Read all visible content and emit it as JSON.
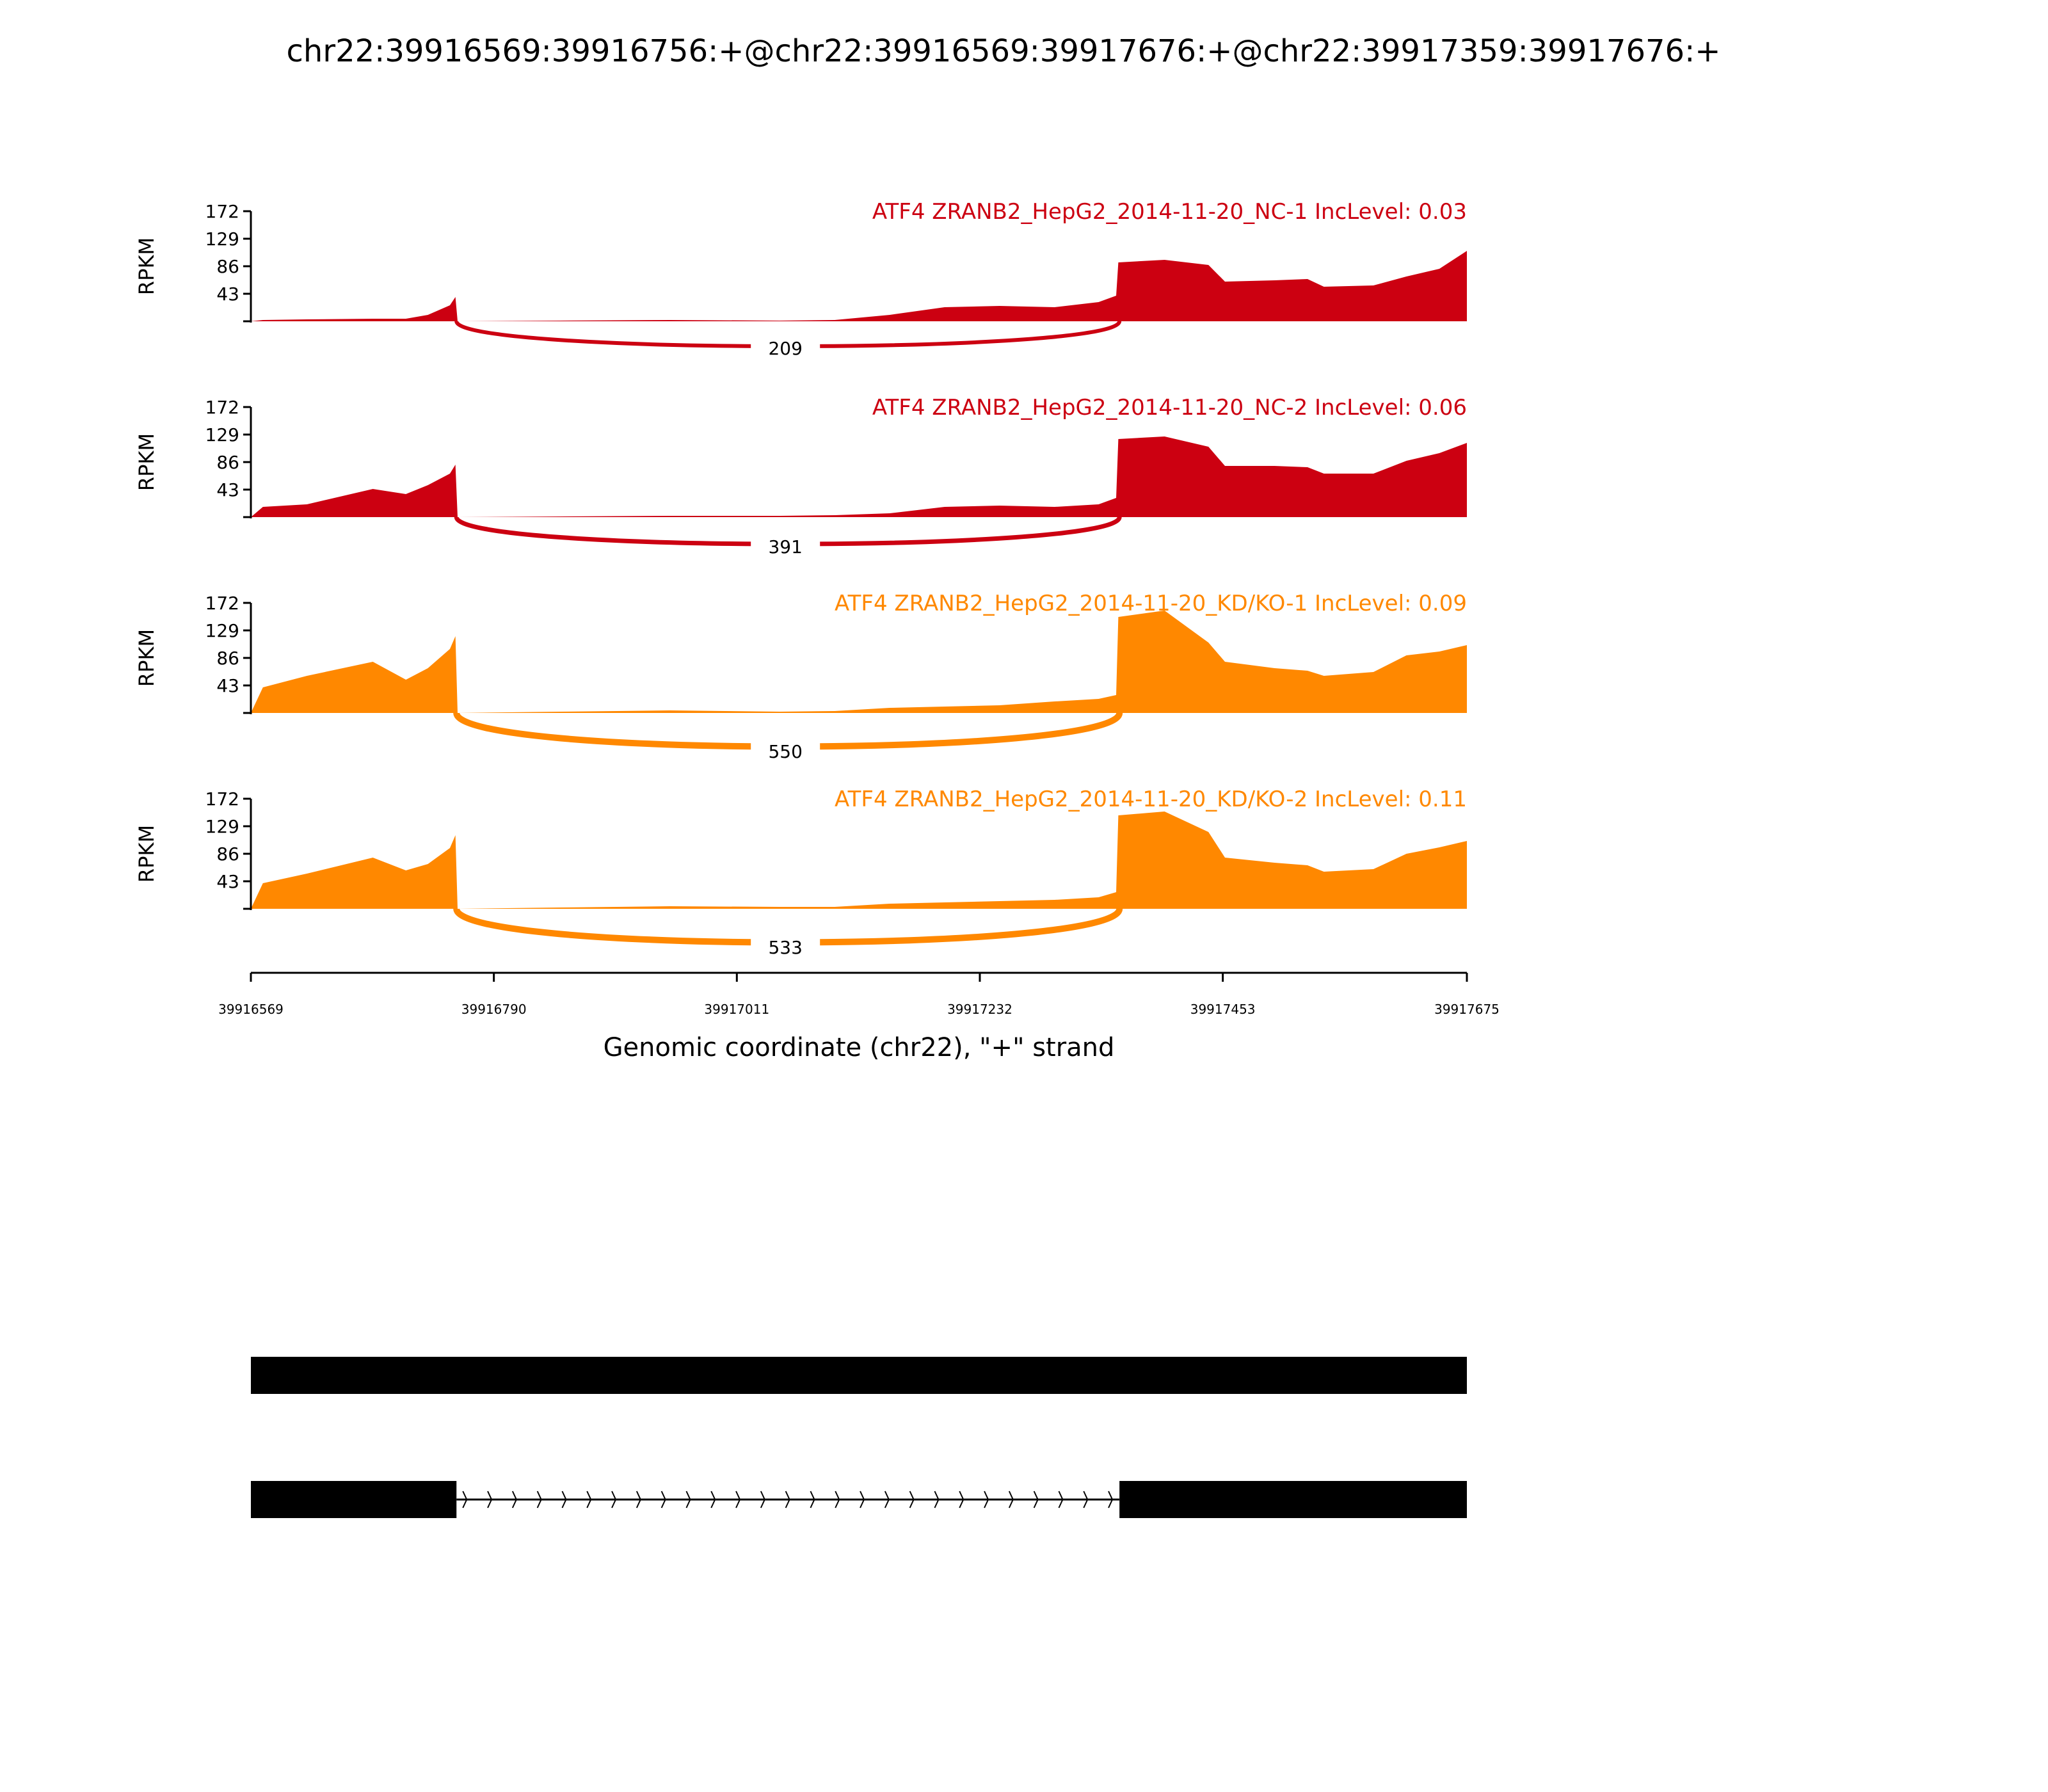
{
  "chart_data": {
    "type": "area",
    "title": "chr22:39916569:39916756:+@chr22:39916569:39917676:+@chr22:39917359:39917676:+",
    "xlabel": "Genomic coordinate (chr22), \"+\" strand",
    "ylabel": "RPKM",
    "xlim": [
      39916569,
      39917675
    ],
    "ylim": [
      0,
      172
    ],
    "xticks": [
      "39916569",
      "39916790",
      "39917011",
      "39917232",
      "39917453",
      "39917675"
    ],
    "yticks": [
      "43",
      "86",
      "129",
      "172"
    ],
    "x": [
      39916569,
      39916580,
      39916620,
      39916680,
      39916710,
      39916730,
      39916750,
      39916755,
      39916757,
      39916850,
      39916950,
      39917050,
      39917100,
      39917150,
      39917200,
      39917250,
      39917300,
      39917340,
      39917356,
      39917358,
      39917400,
      39917440,
      39917455,
      39917500,
      39917530,
      39917545,
      39917590,
      39917620,
      39917650,
      39917675
    ],
    "junction": {
      "start": 39916756,
      "end": 39917359
    },
    "series": [
      {
        "name": "ATF4 ZRANB2_HepG2_2014-11-20_NC-1 IncLevel: 0.03",
        "color": "#cc0011",
        "junction_count": "209",
        "values": [
          0,
          2,
          3,
          4,
          4,
          10,
          25,
          38,
          0,
          1,
          2,
          1,
          2,
          10,
          22,
          24,
          22,
          30,
          40,
          92,
          96,
          88,
          62,
          64,
          66,
          54,
          56,
          70,
          82,
          110
        ]
      },
      {
        "name": "ATF4 ZRANB2_HepG2_2014-11-20_NC-2 IncLevel: 0.06",
        "color": "#cc0011",
        "junction_count": "391",
        "values": [
          0,
          16,
          20,
          44,
          36,
          50,
          68,
          82,
          0,
          1,
          2,
          2,
          3,
          6,
          16,
          18,
          16,
          20,
          30,
          122,
          126,
          110,
          80,
          80,
          78,
          68,
          68,
          88,
          100,
          116
        ]
      },
      {
        "name": "ATF4 ZRANB2_HepG2_2014-11-20_KD/KO-1 IncLevel: 0.09",
        "color": "#ff8800",
        "junction_count": "550",
        "values": [
          0,
          40,
          58,
          80,
          52,
          70,
          100,
          120,
          0,
          2,
          4,
          2,
          3,
          8,
          10,
          12,
          18,
          22,
          28,
          150,
          160,
          110,
          80,
          70,
          66,
          58,
          64,
          90,
          96,
          106
        ]
      },
      {
        "name": "ATF4 ZRANB2_HepG2_2014-11-20_KD/KO-2 IncLevel: 0.11",
        "color": "#ff8800",
        "junction_count": "533",
        "values": [
          0,
          40,
          55,
          80,
          60,
          70,
          95,
          115,
          0,
          2,
          4,
          3,
          3,
          8,
          10,
          12,
          14,
          18,
          26,
          146,
          152,
          120,
          80,
          72,
          68,
          58,
          62,
          86,
          96,
          106
        ]
      }
    ],
    "gene_models": [
      {
        "exons": [
          [
            39916569,
            39917675
          ]
        ]
      },
      {
        "exons": [
          [
            39916569,
            39916756
          ],
          [
            39917359,
            39917675
          ]
        ]
      }
    ]
  }
}
